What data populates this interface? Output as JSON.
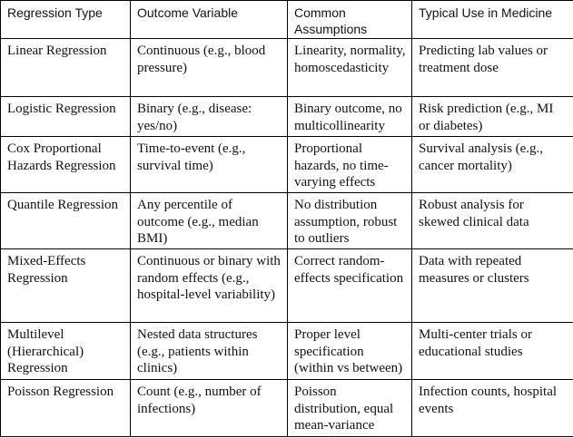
{
  "table": {
    "header": [
      "Regression Type",
      "Outcome Variable",
      "Common Assumptions",
      "Typical Use in Medicine"
    ],
    "rows": [
      [
        "Linear Regression",
        "Continuous (e.g., blood pressure)",
        "Linearity, normality, homoscedasticity",
        "Predicting lab values or treatment dose"
      ],
      [
        "Logistic Regression",
        "Binary (e.g., disease: yes/no)",
        "Binary outcome, no multicollinearity",
        "Risk prediction (e.g., MI or diabetes)"
      ],
      [
        "Cox Proportional Hazards Regression",
        "Time-to-event (e.g., survival time)",
        "Proportional hazards, no time-varying effects",
        "Survival analysis (e.g., cancer mortality)"
      ],
      [
        "Quantile Regression",
        "Any percentile of outcome (e.g., median BMI)",
        "No distribution assumption, robust to outliers",
        "Robust analysis for skewed clinical data"
      ],
      [
        "Mixed-Effects Regression",
        "Continuous or binary with random effects (e.g., hospital-level variability)",
        "Correct random-effects specification",
        "Data with repeated measures or clusters"
      ],
      [
        "Multilevel (Hierarchical) Regression",
        "Nested data structures (e.g., patients within clinics)",
        "Proper level specification (within vs between)",
        "Multi-center trials or educational studies"
      ],
      [
        "Poisson Regression",
        "Count (e.g., number of infections)",
        "Poisson distribution, equal mean-variance",
        "Infection counts, hospital events"
      ]
    ]
  }
}
